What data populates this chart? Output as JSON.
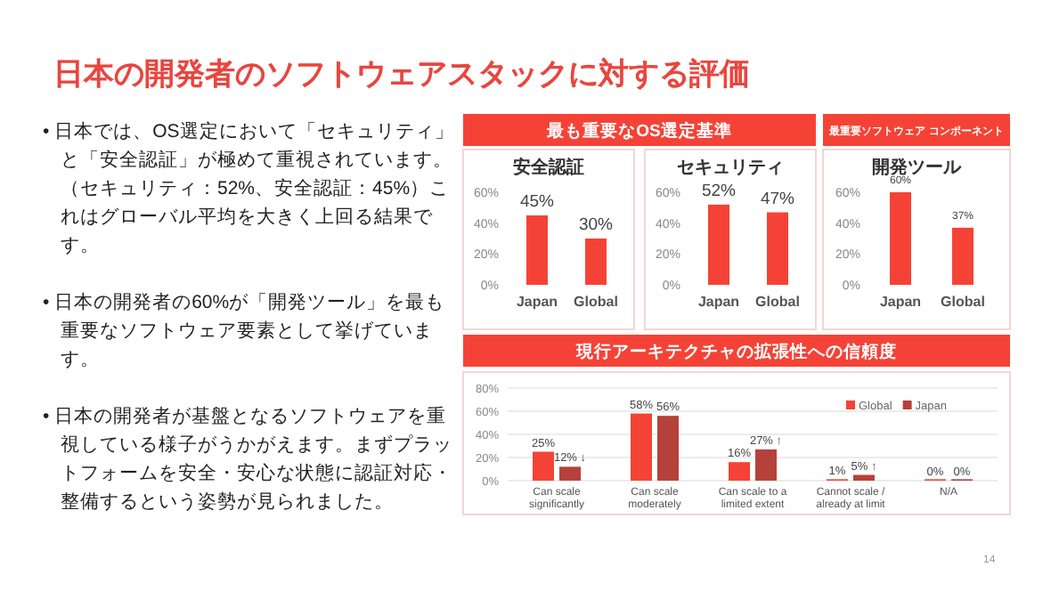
{
  "chart_data": [
    {
      "type": "other",
      "title": "日本の開発者のソフトウェアスタックに対する評価",
      "annotations": [
        "• 日本では、OS選定において「セキュリティ」と「安全認証」が極めて重視されています。（セキュリティ：52%、安全認証：45%）これはグローバル平均を大きく上回る結果です。",
        "• 日本の開発者の60%が「開発ツール」を最も重要なソフトウェア要素として挙げています。",
        "• 日本の開発者が基盤となるソフトウェアを重視している様子がうかがえます。まずプラットフォームを安全・安心な状態に認証対応・整備するという姿勢が見られました。",
        "14"
      ]
    },
    {
      "type": "bar",
      "title": "安全認証",
      "annotations": [
        "最も重要なOS選定基準"
      ],
      "categories": [
        "Japan",
        "Global"
      ],
      "values": [
        45,
        30
      ],
      "value_labels": [
        "45%",
        "30%"
      ],
      "color": "#f44336",
      "ylim": [
        0,
        60
      ],
      "yticks": [
        {
          "value": 0,
          "label": "0%"
        },
        {
          "value": 20,
          "label": "20%"
        },
        {
          "value": 40,
          "label": "40%"
        },
        {
          "value": 60,
          "label": "60%"
        }
      ]
    },
    {
      "type": "bar",
      "title": "セキュリティ",
      "categories": [
        "Japan",
        "Global"
      ],
      "values": [
        52,
        47
      ],
      "value_labels": [
        "52%",
        "47%"
      ],
      "color": "#f44336",
      "ylim": [
        0,
        60
      ],
      "yticks": [
        {
          "value": 0,
          "label": "0%"
        },
        {
          "value": 20,
          "label": "20%"
        },
        {
          "value": 40,
          "label": "40%"
        },
        {
          "value": 60,
          "label": "60%"
        }
      ]
    },
    {
      "type": "bar",
      "title": "開発ツール",
      "annotations": [
        "最重要ソフトウェア コンポーネント"
      ],
      "categories": [
        "Japan",
        "Global"
      ],
      "values": [
        60,
        37
      ],
      "value_labels": [
        "60%",
        "37%"
      ],
      "color": "#f44336",
      "ylim": [
        0,
        60
      ],
      "yticks": [
        {
          "value": 0,
          "label": "0%"
        },
        {
          "value": 20,
          "label": "20%"
        },
        {
          "value": 40,
          "label": "40%"
        },
        {
          "value": 60,
          "label": "60%"
        }
      ]
    },
    {
      "type": "bar",
      "title": "現行アーキテクチャの拡張性への信頼度",
      "categories": [
        "Can scale significantly",
        "Can scale moderately",
        "Can scale to a limited extent",
        "Cannot scale / already at limit",
        "N/A"
      ],
      "series": [
        {
          "name": "Global",
          "color": "#f44336",
          "values": [
            25,
            58,
            16,
            1,
            0
          ],
          "value_labels": [
            "25%",
            "58%",
            "16%",
            "1%",
            "0%"
          ]
        },
        {
          "name": "Japan",
          "color": "#b5413b",
          "values": [
            12,
            56,
            27,
            5,
            0
          ],
          "value_labels": [
            "12% ↓",
            "56%",
            "27% ↑",
            "5% ↑",
            "0%"
          ]
        }
      ],
      "ylim": [
        0,
        80
      ],
      "yticks": [
        {
          "value": 0,
          "label": "0%"
        },
        {
          "value": 20,
          "label": "20%"
        },
        {
          "value": 40,
          "label": "40%"
        },
        {
          "value": 60,
          "label": "60%"
        },
        {
          "value": 80,
          "label": "80%"
        }
      ],
      "grid": "y",
      "legend": "top right"
    }
  ]
}
